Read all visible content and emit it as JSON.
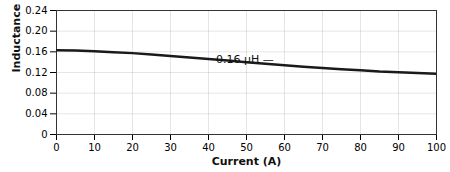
{
  "chart_data": {
    "type": "line",
    "x": [
      0,
      5,
      10,
      15,
      20,
      25,
      30,
      35,
      40,
      45,
      50,
      55,
      60,
      65,
      70,
      75,
      80,
      85,
      90,
      95,
      100
    ],
    "values": [
      0.163,
      0.1625,
      0.161,
      0.159,
      0.1575,
      0.155,
      0.152,
      0.149,
      0.146,
      0.143,
      0.14,
      0.137,
      0.134,
      0.131,
      0.1285,
      0.1265,
      0.1245,
      0.122,
      0.1205,
      0.119,
      0.1175
    ],
    "color": "#1a1a1a",
    "xlabel": "Current (A)",
    "ylabel": "Inductance (μH)",
    "xlim": [
      0,
      100
    ],
    "ylim": [
      0,
      0.24
    ],
    "xticks": [
      0,
      10,
      20,
      30,
      40,
      50,
      60,
      70,
      80,
      90,
      100
    ],
    "yticks": [
      0,
      0.04,
      0.08,
      0.12,
      0.16,
      {
        "value": 0.2,
        "label": "0.20"
      },
      0.24
    ],
    "grid": true,
    "annotations": [
      {
        "text": "0.16 μH —",
        "x": 42,
        "y": 0.1455
      }
    ]
  }
}
